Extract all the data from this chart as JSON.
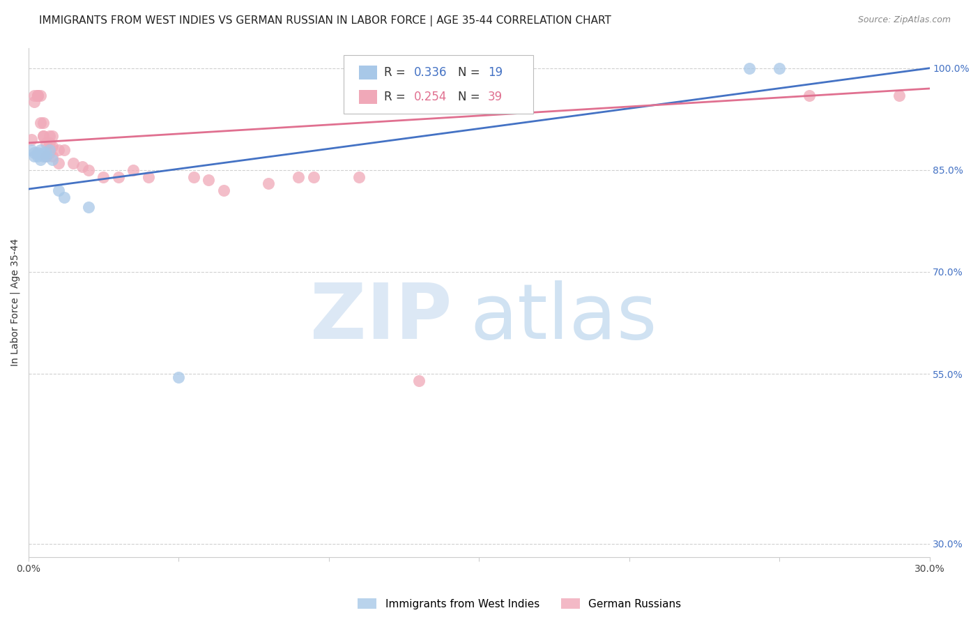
{
  "title": "IMMIGRANTS FROM WEST INDIES VS GERMAN RUSSIAN IN LABOR FORCE | AGE 35-44 CORRELATION CHART",
  "source": "Source: ZipAtlas.com",
  "ylabel": "In Labor Force | Age 35-44",
  "ylabel_right_ticks": [
    "100.0%",
    "85.0%",
    "70.0%",
    "55.0%",
    "30.0%"
  ],
  "ylabel_right_values": [
    1.0,
    0.85,
    0.7,
    0.55,
    0.3
  ],
  "xlim": [
    0.0,
    0.3
  ],
  "ylim": [
    0.28,
    1.03
  ],
  "legend_blue_label": "Immigrants from West Indies",
  "legend_pink_label": "German Russians",
  "blue_color": "#a8c8e8",
  "pink_color": "#f0a8b8",
  "blue_line_color": "#4472c4",
  "pink_line_color": "#e07090",
  "background_color": "#ffffff",
  "grid_color": "#d0d0d0",
  "blue_points_x": [
    0.001,
    0.002,
    0.002,
    0.003,
    0.003,
    0.004,
    0.004,
    0.005,
    0.005,
    0.006,
    0.006,
    0.007,
    0.008,
    0.01,
    0.012,
    0.02,
    0.05,
    0.24,
    0.25
  ],
  "blue_points_y": [
    0.88,
    0.87,
    0.875,
    0.87,
    0.875,
    0.88,
    0.865,
    0.875,
    0.87,
    0.87,
    0.875,
    0.88,
    0.865,
    0.82,
    0.81,
    0.795,
    0.545,
    1.0,
    1.0
  ],
  "pink_points_x": [
    0.001,
    0.002,
    0.002,
    0.003,
    0.003,
    0.003,
    0.004,
    0.004,
    0.005,
    0.005,
    0.005,
    0.006,
    0.006,
    0.007,
    0.007,
    0.007,
    0.008,
    0.008,
    0.008,
    0.01,
    0.01,
    0.012,
    0.015,
    0.018,
    0.02,
    0.025,
    0.03,
    0.035,
    0.04,
    0.055,
    0.06,
    0.065,
    0.08,
    0.09,
    0.095,
    0.11,
    0.13,
    0.26,
    0.29
  ],
  "pink_points_y": [
    0.895,
    0.95,
    0.96,
    0.96,
    0.96,
    0.96,
    0.96,
    0.92,
    0.9,
    0.92,
    0.9,
    0.89,
    0.87,
    0.9,
    0.89,
    0.875,
    0.9,
    0.885,
    0.87,
    0.88,
    0.86,
    0.88,
    0.86,
    0.855,
    0.85,
    0.84,
    0.84,
    0.85,
    0.84,
    0.84,
    0.835,
    0.82,
    0.83,
    0.84,
    0.84,
    0.84,
    0.54,
    0.96,
    0.96
  ],
  "blue_line_x0": 0.0,
  "blue_line_y0": 0.822,
  "blue_line_x1": 0.3,
  "blue_line_y1": 1.0,
  "pink_line_x0": 0.0,
  "pink_line_y0": 0.89,
  "pink_line_x1": 0.3,
  "pink_line_y1": 0.97,
  "title_fontsize": 11,
  "axis_label_fontsize": 10,
  "tick_fontsize": 10,
  "legend_fontsize": 12
}
